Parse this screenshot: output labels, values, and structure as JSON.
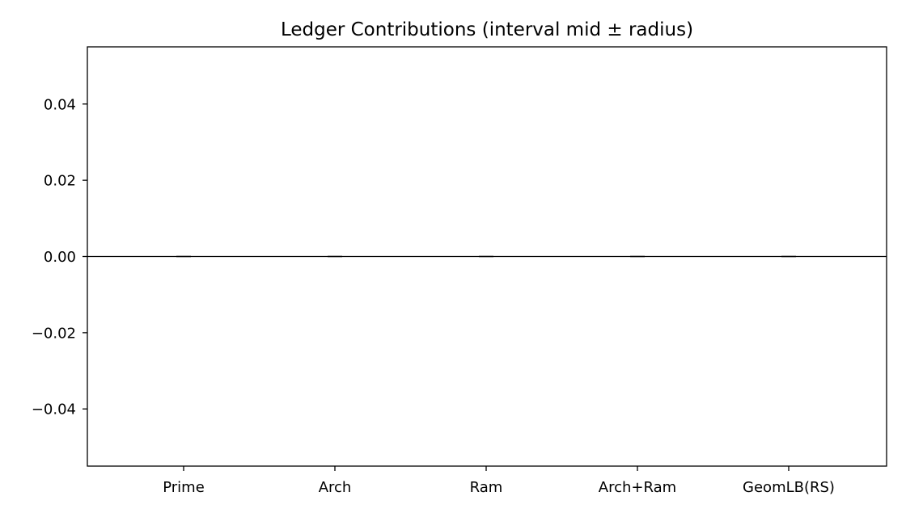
{
  "chart_data": {
    "type": "bar",
    "title": "Ledger Contributions (interval mid ± radius)",
    "xlabel": "",
    "ylabel": "",
    "categories": [
      "Prime",
      "Arch",
      "Ram",
      "Arch+Ram",
      "GeomLB(RS)"
    ],
    "values": [
      0,
      0,
      0,
      0,
      0
    ],
    "errors": [
      0,
      0,
      0,
      0,
      0
    ],
    "ylim": [
      -0.055,
      0.055
    ],
    "yticks": [
      -0.04,
      -0.02,
      0.0,
      0.02,
      0.04
    ],
    "ytick_labels": [
      "−0.04",
      "−0.02",
      "0.00",
      "0.02",
      "0.04"
    ],
    "reference_line": 0,
    "grid": false,
    "bar_color": "#1f77b4",
    "error_color": "#555555"
  }
}
